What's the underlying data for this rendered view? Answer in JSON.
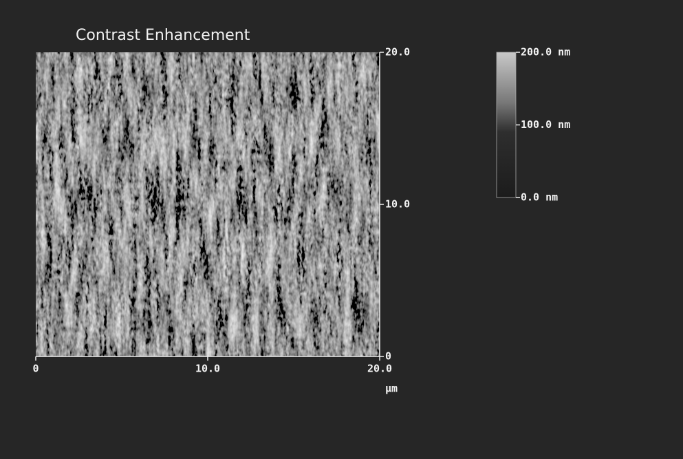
{
  "chart_data": {
    "type": "image",
    "title": "Contrast Enhancement",
    "xlim": [
      0,
      20
    ],
    "xticks": [
      0,
      {
        "value": 10,
        "label": "10.0"
      },
      {
        "value": 20,
        "label": "20.0"
      }
    ],
    "ylim": [
      0,
      20
    ],
    "yticks": [
      0,
      {
        "value": 10,
        "label": "10.0"
      },
      {
        "value": 20,
        "label": "20.0"
      }
    ],
    "x_label": "µm",
    "colorbar": {
      "lim": [
        0,
        200
      ],
      "ticks": [
        {
          "value": 0,
          "label": "0.0 nm"
        },
        {
          "value": 100,
          "label": "100.0 nm"
        },
        {
          "value": 200,
          "label": "200.0 nm"
        }
      ]
    }
  }
}
